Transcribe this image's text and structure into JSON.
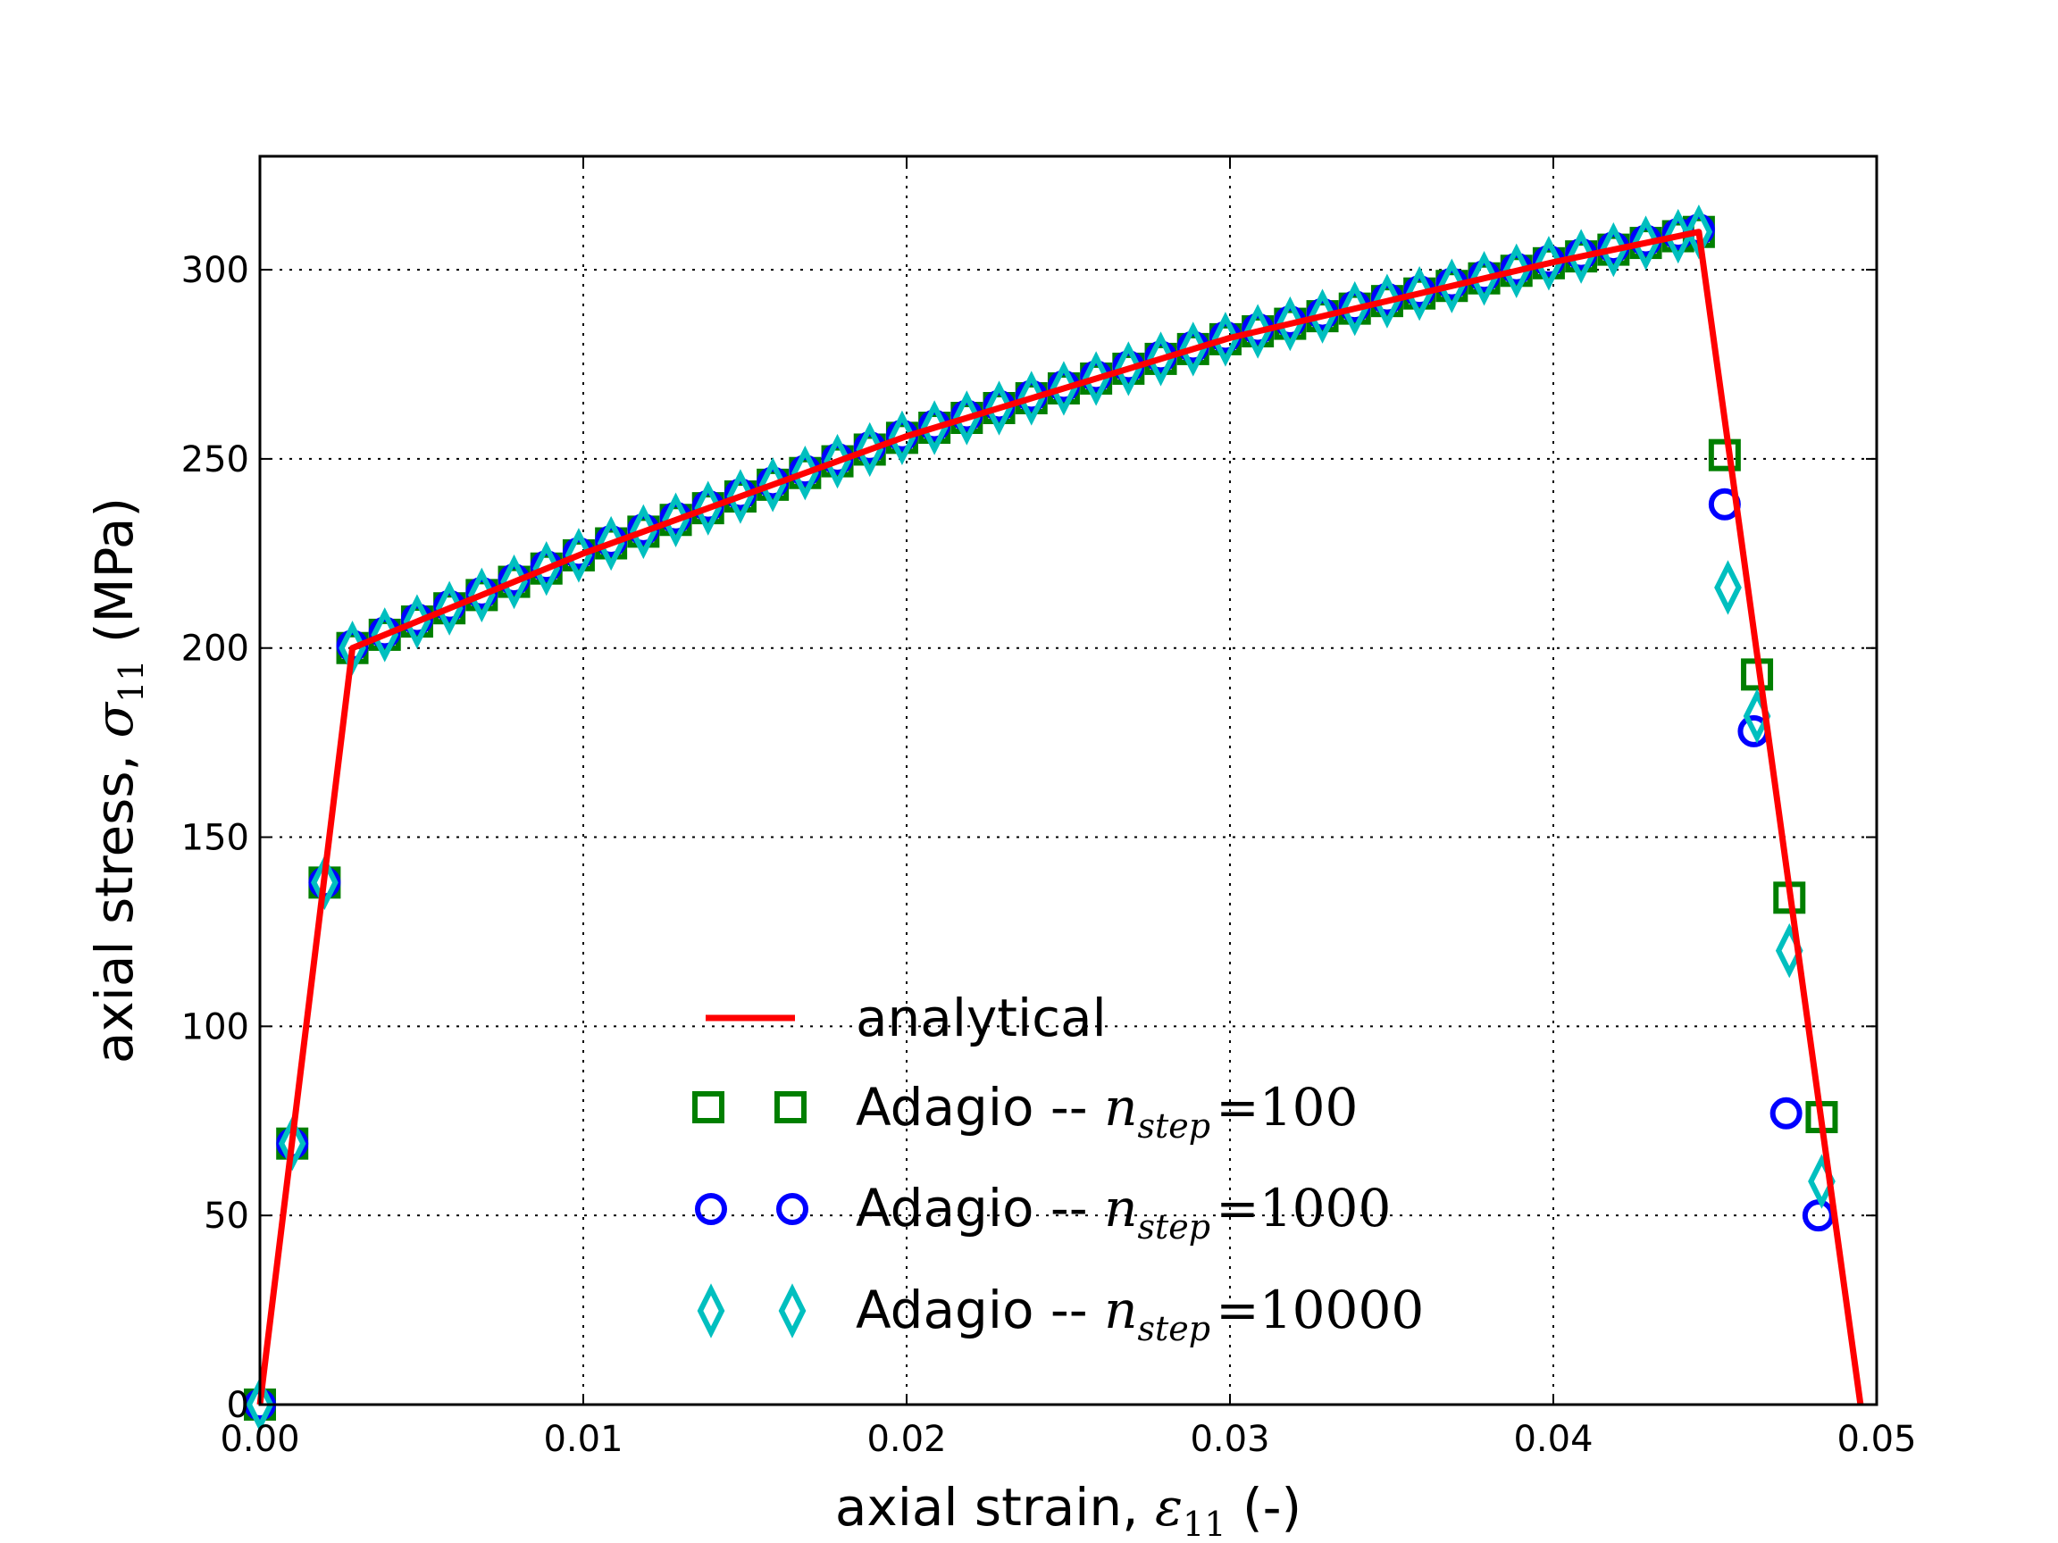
{
  "chart_data": {
    "type": "line",
    "title": "",
    "xlabel": "axial strain, ",
    "xlabel_symbol": "ε",
    "xlabel_subscript": "11",
    "xlabel_suffix": " (-)",
    "ylabel": "axial stress, ",
    "ylabel_symbol": "σ",
    "ylabel_subscript": "11",
    "ylabel_suffix": " (MPa)",
    "xlim": [
      0.0,
      0.05
    ],
    "ylim": [
      0,
      330
    ],
    "xticks": [
      0.0,
      0.01,
      0.02,
      0.03,
      0.04,
      0.05
    ],
    "xtick_labels": [
      "0.00",
      "0.01",
      "0.02",
      "0.03",
      "0.04",
      "0.05"
    ],
    "yticks": [
      0,
      50,
      100,
      150,
      200,
      250,
      300
    ],
    "ytick_labels": [
      "0",
      "50",
      "100",
      "150",
      "200",
      "250",
      "300"
    ],
    "grid": true,
    "legend_position": "lower-center",
    "series": [
      {
        "name": "analytical",
        "style": "line",
        "color": "#ff0000",
        "x": [
          0.0,
          0.00286,
          0.01,
          0.02,
          0.03,
          0.04,
          0.0445,
          0.0495
        ],
        "y": [
          0,
          200,
          225,
          256,
          282,
          302,
          310,
          0
        ]
      },
      {
        "name": "Adagio -- ",
        "name_symbol": "n",
        "name_subscript": "step",
        "name_value": "100",
        "style": "markers",
        "marker": "square",
        "color": "#007f00",
        "x": [
          0.0,
          0.001,
          0.002,
          0.0453,
          0.0463,
          0.0473,
          0.0483
        ],
        "y": [
          0,
          69,
          138,
          251,
          193,
          134,
          76
        ]
      },
      {
        "name": "Adagio -- ",
        "name_symbol": "n",
        "name_subscript": "step",
        "name_value": "1000",
        "style": "markers",
        "marker": "circle",
        "color": "#0000ff",
        "x": [
          0.0,
          0.001,
          0.002,
          0.0453,
          0.0462,
          0.0472,
          0.0482
        ],
        "y": [
          0,
          69,
          138,
          238,
          178,
          77,
          50
        ]
      },
      {
        "name": "Adagio -- ",
        "name_symbol": "n",
        "name_subscript": "step",
        "name_value": "10000",
        "style": "markers",
        "marker": "diamond",
        "color": "#00bfbf",
        "x": [
          0.0,
          0.001,
          0.002,
          0.0454,
          0.0463,
          0.0473,
          0.0483
        ],
        "y": [
          0,
          69,
          138,
          216,
          182,
          120,
          59
        ]
      }
    ],
    "plastic_segment": {
      "x_start": 0.00286,
      "x_end": 0.0445,
      "x_step": 0.001,
      "y_start": 200,
      "y_end": 310,
      "applies_to": [
        "square",
        "circle",
        "diamond"
      ]
    }
  }
}
